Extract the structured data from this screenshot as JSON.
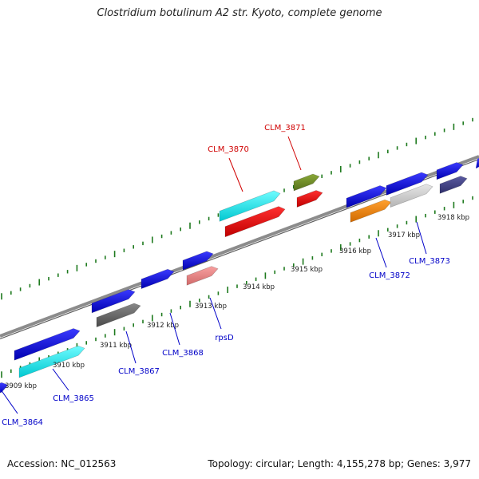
{
  "title": "Clostridium botulinum A2 str. Kyoto, complete genome",
  "footer": {
    "accession": "Accession: NC_012563",
    "stats": "Topology: circular; Length: 4,155,278 bp; Genes: 3,977"
  },
  "colors": {
    "backbone": "#8a8a8a",
    "tick": "#1e7a1e",
    "gene_label": "#0000c8",
    "highlight_label": "#d00000"
  },
  "ruler_labels": [
    "3909 kbp",
    "3910 kbp",
    "3911 kbp",
    "3912 kbp",
    "3913 kbp",
    "3914 kbp",
    "3915 kbp",
    "3916 kbp",
    "3917 kbp",
    "3918 kbp"
  ],
  "genes": [
    {
      "label": "",
      "color": "blue"
    },
    {
      "label": "CLM_3864",
      "color": "blue"
    },
    {
      "label": "CLM_3865",
      "color": "cyan"
    },
    {
      "label": "",
      "color": "blue"
    },
    {
      "label": "CLM_3867",
      "color": "gray"
    },
    {
      "label": "",
      "color": "blue"
    },
    {
      "label": "CLM_3868",
      "color": "blue"
    },
    {
      "label": "",
      "color": "blue"
    },
    {
      "label": "rpsD",
      "color": "pink"
    },
    {
      "label": "CLM_3870",
      "color": "cyan"
    },
    {
      "label": "",
      "color": "red"
    },
    {
      "label": "CLM_3871",
      "color": "olive"
    },
    {
      "label": "",
      "color": "red"
    },
    {
      "label": "",
      "color": "blue"
    },
    {
      "label": "CLM_3872",
      "color": "orange"
    },
    {
      "label": "",
      "color": "blue"
    },
    {
      "label": "CLM_3873",
      "color": "lightgray"
    },
    {
      "label": "",
      "color": "blue"
    },
    {
      "label": "",
      "color": "darkpurple"
    }
  ]
}
